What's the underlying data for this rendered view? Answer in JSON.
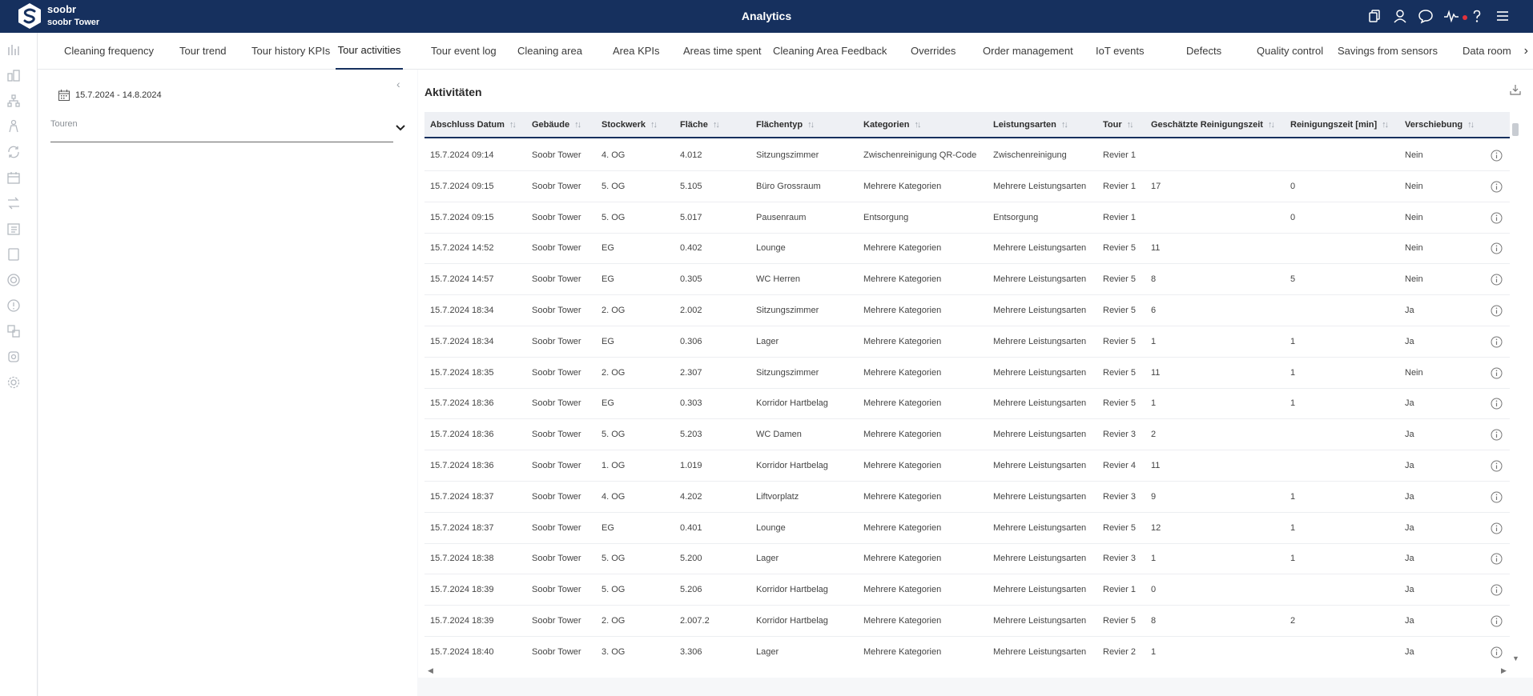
{
  "header": {
    "brand_name": "soobr",
    "brand_building": "soobr Tower",
    "title": "Analytics",
    "icons": [
      "copy-icon",
      "user-icon",
      "chat-icon",
      "pulse-icon",
      "help-icon",
      "menu-icon"
    ],
    "accent_color": "#16305e",
    "notification_color": "#e2323c"
  },
  "rail": {
    "icons": [
      "bar-chart-icon",
      "building-chart-icon",
      "org-tree-icon",
      "person-icon",
      "refresh-icon",
      "calendar-list-icon",
      "swap-icon",
      "checklist-icon",
      "tablet-icon",
      "target-icon",
      "alert-icon",
      "translate-icon",
      "settings-cog-icon",
      "gear-icon"
    ]
  },
  "tabs": [
    {
      "label": "Cleaning frequency"
    },
    {
      "label": "Tour trend"
    },
    {
      "label": "Tour history KPIs"
    },
    {
      "label": "Tour activities",
      "active": true
    },
    {
      "label": "Tour event log"
    },
    {
      "label": "Cleaning area"
    },
    {
      "label": "Area KPIs"
    },
    {
      "label": "Areas time spent"
    },
    {
      "label": "Cleaning Area Feedback"
    },
    {
      "label": "Overrides"
    },
    {
      "label": "Order management"
    },
    {
      "label": "IoT events"
    },
    {
      "label": "Defects"
    },
    {
      "label": "Quality control"
    },
    {
      "label": "Savings from sensors"
    },
    {
      "label": "Data room"
    }
  ],
  "filter": {
    "date_range": "15.7.2024 - 14.8.2024",
    "tours_placeholder": "Touren"
  },
  "table": {
    "title": "Aktivitäten",
    "columns": [
      "Abschluss Datum",
      "Gebäude",
      "Stockwerk",
      "Fläche",
      "Flächentyp",
      "Kategorien",
      "Leistungsarten",
      "Tour",
      "Geschätzte Reinigungszeit",
      "Reinigungszeit [min]",
      "Verschiebung"
    ],
    "rows": [
      [
        "15.7.2024 09:14",
        "Soobr Tower",
        "4. OG",
        "4.012",
        "Sitzungszimmer",
        "Zwischenreinigung QR-Code",
        "Zwischenreinigung",
        "Revier 1",
        "",
        "",
        "Nein"
      ],
      [
        "15.7.2024 09:15",
        "Soobr Tower",
        "5. OG",
        "5.105",
        "Büro Grossraum",
        "Mehrere Kategorien",
        "Mehrere Leistungsarten",
        "Revier 1",
        "17",
        "0",
        "Nein"
      ],
      [
        "15.7.2024 09:15",
        "Soobr Tower",
        "5. OG",
        "5.017",
        "Pausenraum",
        "Entsorgung",
        "Entsorgung",
        "Revier 1",
        "",
        "0",
        "Nein"
      ],
      [
        "15.7.2024 14:52",
        "Soobr Tower",
        "EG",
        "0.402",
        "Lounge",
        "Mehrere Kategorien",
        "Mehrere Leistungsarten",
        "Revier 5",
        "11",
        "",
        "Nein"
      ],
      [
        "15.7.2024 14:57",
        "Soobr Tower",
        "EG",
        "0.305",
        "WC Herren",
        "Mehrere Kategorien",
        "Mehrere Leistungsarten",
        "Revier 5",
        "8",
        "5",
        "Nein"
      ],
      [
        "15.7.2024 18:34",
        "Soobr Tower",
        "2. OG",
        "2.002",
        "Sitzungszimmer",
        "Mehrere Kategorien",
        "Mehrere Leistungsarten",
        "Revier 5",
        "6",
        "",
        "Ja"
      ],
      [
        "15.7.2024 18:34",
        "Soobr Tower",
        "EG",
        "0.306",
        "Lager",
        "Mehrere Kategorien",
        "Mehrere Leistungsarten",
        "Revier 5",
        "1",
        "1",
        "Ja"
      ],
      [
        "15.7.2024 18:35",
        "Soobr Tower",
        "2. OG",
        "2.307",
        "Sitzungszimmer",
        "Mehrere Kategorien",
        "Mehrere Leistungsarten",
        "Revier 5",
        "11",
        "1",
        "Nein"
      ],
      [
        "15.7.2024 18:36",
        "Soobr Tower",
        "EG",
        "0.303",
        "Korridor Hartbelag",
        "Mehrere Kategorien",
        "Mehrere Leistungsarten",
        "Revier 5",
        "1",
        "1",
        "Ja"
      ],
      [
        "15.7.2024 18:36",
        "Soobr Tower",
        "5. OG",
        "5.203",
        "WC Damen",
        "Mehrere Kategorien",
        "Mehrere Leistungsarten",
        "Revier 3",
        "2",
        "",
        "Ja"
      ],
      [
        "15.7.2024 18:36",
        "Soobr Tower",
        "1. OG",
        "1.019",
        "Korridor Hartbelag",
        "Mehrere Kategorien",
        "Mehrere Leistungsarten",
        "Revier 4",
        "11",
        "",
        "Ja"
      ],
      [
        "15.7.2024 18:37",
        "Soobr Tower",
        "4. OG",
        "4.202",
        "Liftvorplatz",
        "Mehrere Kategorien",
        "Mehrere Leistungsarten",
        "Revier 3",
        "9",
        "1",
        "Ja"
      ],
      [
        "15.7.2024 18:37",
        "Soobr Tower",
        "EG",
        "0.401",
        "Lounge",
        "Mehrere Kategorien",
        "Mehrere Leistungsarten",
        "Revier 5",
        "12",
        "1",
        "Ja"
      ],
      [
        "15.7.2024 18:38",
        "Soobr Tower",
        "5. OG",
        "5.200",
        "Lager",
        "Mehrere Kategorien",
        "Mehrere Leistungsarten",
        "Revier 3",
        "1",
        "1",
        "Ja"
      ],
      [
        "15.7.2024 18:39",
        "Soobr Tower",
        "5. OG",
        "5.206",
        "Korridor Hartbelag",
        "Mehrere Kategorien",
        "Mehrere Leistungsarten",
        "Revier 1",
        "0",
        "",
        "Ja"
      ],
      [
        "15.7.2024 18:39",
        "Soobr Tower",
        "2. OG",
        "2.007.2",
        "Korridor Hartbelag",
        "Mehrere Kategorien",
        "Mehrere Leistungsarten",
        "Revier 5",
        "8",
        "2",
        "Ja"
      ],
      [
        "15.7.2024 18:40",
        "Soobr Tower",
        "3. OG",
        "3.306",
        "Lager",
        "Mehrere Kategorien",
        "Mehrere Leistungsarten",
        "Revier 2",
        "1",
        "",
        "Ja"
      ]
    ]
  }
}
